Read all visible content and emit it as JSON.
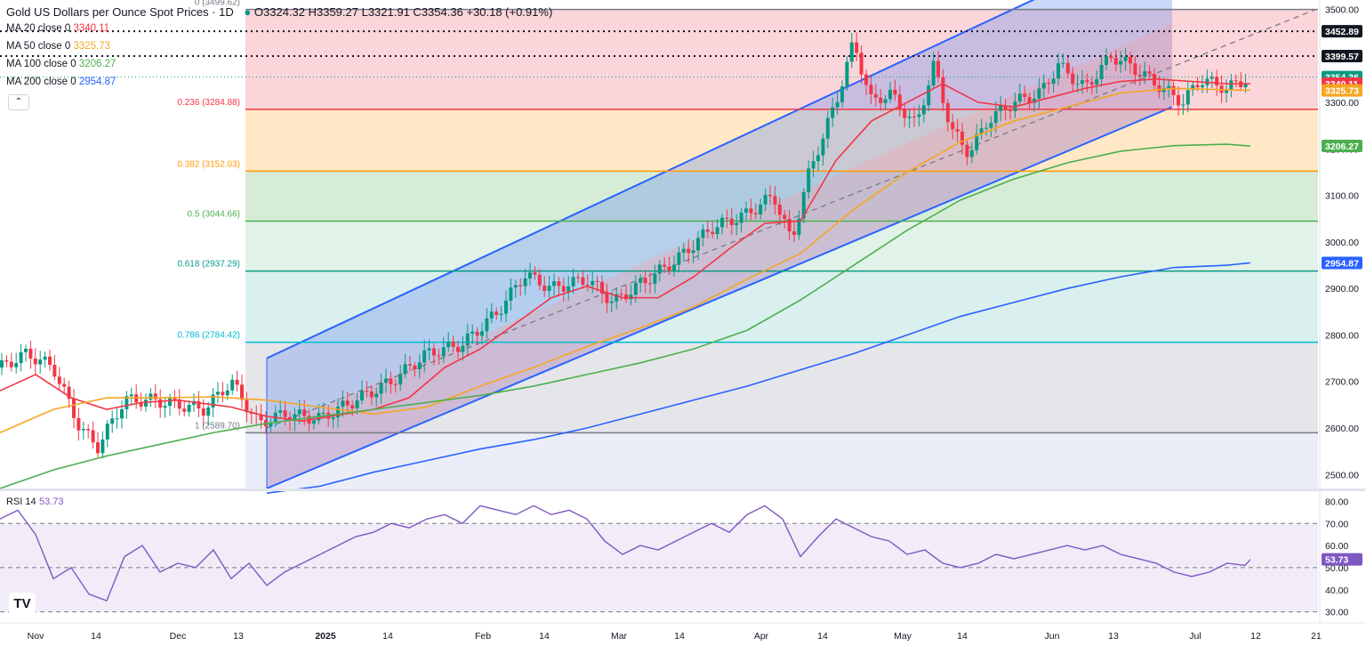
{
  "header": {
    "title": "Gold US Dollars per Ounce Spot Prices · 1D",
    "ohlc": "O3324.32 H3359.27 L3321.91 C3354.36 +30.18 (+0.91%)",
    "collapse_icon": "chevron-up-icon"
  },
  "moving_averages": [
    {
      "label": "MA 20 close 0",
      "value": "3340.11",
      "color": "#f23645",
      "current": 3340.11
    },
    {
      "label": "MA 50 close 0",
      "value": "3325.73",
      "color": "#f5a623",
      "current": 3325.73
    },
    {
      "label": "MA 100 close 0",
      "value": "3206.27",
      "color": "#4caf50",
      "current": 3206.27
    },
    {
      "label": "MA 200 close 0",
      "value": "2954.87",
      "color": "#2962ff",
      "current": 2954.87
    }
  ],
  "chart_data": [
    {
      "type": "candlestick",
      "title": "Gold US Dollars per Ounce Spot Prices · 1D",
      "ylim": [
        2470,
        3520
      ],
      "y_ticks": [
        2500,
        2600,
        2700,
        2800,
        2900,
        3000,
        3100,
        3200,
        3300,
        3400,
        3500
      ],
      "y_tick_labels": [
        "2500.00",
        "2600.00",
        "2700.00",
        "2800.00",
        "2900.00",
        "3000.00",
        "3100.00",
        "3200.00",
        "3300.00",
        "3400.00",
        "3500.00"
      ],
      "x_labels": [
        "Nov",
        "14",
        "Dec",
        "13",
        "2025",
        "14",
        "Feb",
        "14",
        "Mar",
        "14",
        "Apr",
        "14",
        "May",
        "14",
        "Jun",
        "13",
        "Jul",
        "12",
        "21"
      ],
      "last_close": 3354.36,
      "price_labels": [
        {
          "text": "3452.89",
          "value": 3452.89,
          "color": "#131722"
        },
        {
          "text": "3399.57",
          "value": 3399.57,
          "color": "#131722"
        },
        {
          "text": "3354.36",
          "value": 3354.36,
          "color": "#089981"
        },
        {
          "text": "3340.11",
          "value": 3340.11,
          "color": "#f23645"
        },
        {
          "text": "3325.73",
          "value": 3325.73,
          "color": "#f5a623"
        },
        {
          "text": "3206.27",
          "value": 3206.27,
          "color": "#4caf50"
        },
        {
          "text": "2954.87",
          "value": 2954.87,
          "color": "#2962ff"
        }
      ],
      "horizontal_lines": [
        3452.89,
        3399.57
      ],
      "fibonacci": [
        {
          "ratio": "0",
          "label": "0 (3499.62)",
          "price": 3499.62,
          "color": "#787b86"
        },
        {
          "ratio": "0.236",
          "label": "0.236 (3284.88)",
          "price": 3284.88,
          "color": "#f23645"
        },
        {
          "ratio": "0.382",
          "label": "0.382 (3152.03)",
          "price": 3152.03,
          "color": "#ff9800"
        },
        {
          "ratio": "0.5",
          "label": "0.5 (3044.66)",
          "price": 3044.66,
          "color": "#4caf50"
        },
        {
          "ratio": "0.618",
          "label": "0.618 (2937.29)",
          "price": 2937.29,
          "color": "#089981"
        },
        {
          "ratio": "0.786",
          "label": "0.786 (2784.42)",
          "price": 2784.42,
          "color": "#00bcd4"
        },
        {
          "ratio": "1",
          "label": "1 (2589.70)",
          "price": 2589.7,
          "color": "#787b86"
        }
      ],
      "series": [
        {
          "name": "MA 20 close 0",
          "color": "#f23645",
          "points": [
            [
              0,
              2680
            ],
            [
              40,
              2715
            ],
            [
              80,
              2665
            ],
            [
              120,
              2640
            ],
            [
              160,
              2655
            ],
            [
              200,
              2660
            ],
            [
              260,
              2645
            ],
            [
              300,
              2625
            ],
            [
              340,
              2615
            ],
            [
              380,
              2628
            ],
            [
              420,
              2640
            ],
            [
              460,
              2665
            ],
            [
              500,
              2730
            ],
            [
              540,
              2770
            ],
            [
              580,
              2825
            ],
            [
              620,
              2880
            ],
            [
              660,
              2905
            ],
            [
              700,
              2880
            ],
            [
              740,
              2880
            ],
            [
              780,
              2925
            ],
            [
              820,
              2985
            ],
            [
              860,
              3040
            ],
            [
              900,
              3045
            ],
            [
              940,
              3175
            ],
            [
              980,
              3260
            ],
            [
              1020,
              3300
            ],
            [
              1060,
              3340
            ],
            [
              1100,
              3300
            ],
            [
              1140,
              3290
            ],
            [
              1180,
              3310
            ],
            [
              1220,
              3330
            ],
            [
              1260,
              3345
            ],
            [
              1300,
              3350
            ],
            [
              1340,
              3345
            ],
            [
              1380,
              3340
            ],
            [
              1406,
              3340
            ]
          ]
        },
        {
          "name": "MA 50 close 0",
          "color": "#f5a623",
          "points": [
            [
              0,
              2590
            ],
            [
              60,
              2640
            ],
            [
              120,
              2665
            ],
            [
              180,
              2665
            ],
            [
              240,
              2667
            ],
            [
              300,
              2660
            ],
            [
              360,
              2645
            ],
            [
              420,
              2630
            ],
            [
              480,
              2645
            ],
            [
              540,
              2690
            ],
            [
              600,
              2730
            ],
            [
              660,
              2775
            ],
            [
              720,
              2815
            ],
            [
              780,
              2860
            ],
            [
              840,
              2920
            ],
            [
              900,
              2975
            ],
            [
              960,
              3070
            ],
            [
              1020,
              3150
            ],
            [
              1080,
              3215
            ],
            [
              1140,
              3260
            ],
            [
              1200,
              3290
            ],
            [
              1260,
              3320
            ],
            [
              1320,
              3330
            ],
            [
              1380,
              3327
            ],
            [
              1406,
              3326
            ]
          ]
        },
        {
          "name": "MA 100 close 0",
          "color": "#4caf50",
          "points": [
            [
              0,
              2470
            ],
            [
              60,
              2510
            ],
            [
              120,
              2540
            ],
            [
              180,
              2565
            ],
            [
              240,
              2590
            ],
            [
              300,
              2610
            ],
            [
              360,
              2625
            ],
            [
              420,
              2640
            ],
            [
              480,
              2655
            ],
            [
              540,
              2670
            ],
            [
              600,
              2690
            ],
            [
              660,
              2715
            ],
            [
              720,
              2740
            ],
            [
              780,
              2770
            ],
            [
              840,
              2810
            ],
            [
              900,
              2875
            ],
            [
              960,
              2950
            ],
            [
              1020,
              3025
            ],
            [
              1080,
              3090
            ],
            [
              1140,
              3135
            ],
            [
              1200,
              3170
            ],
            [
              1260,
              3195
            ],
            [
              1320,
              3207
            ],
            [
              1380,
              3210
            ],
            [
              1406,
              3206
            ]
          ]
        },
        {
          "name": "MA 200 close 0",
          "color": "#2962ff",
          "points": [
            [
              300,
              2460
            ],
            [
              360,
              2475
            ],
            [
              420,
              2505
            ],
            [
              480,
              2530
            ],
            [
              540,
              2555
            ],
            [
              600,
              2575
            ],
            [
              660,
              2600
            ],
            [
              720,
              2630
            ],
            [
              780,
              2660
            ],
            [
              840,
              2690
            ],
            [
              900,
              2725
            ],
            [
              960,
              2760
            ],
            [
              1020,
              2800
            ],
            [
              1080,
              2840
            ],
            [
              1140,
              2870
            ],
            [
              1200,
              2900
            ],
            [
              1260,
              2925
            ],
            [
              1320,
              2945
            ],
            [
              1380,
              2950
            ],
            [
              1406,
              2955
            ]
          ]
        }
      ]
    },
    {
      "type": "line",
      "title": "RSI 14",
      "value": 53.73,
      "value_label": "53.73",
      "ylim": [
        25,
        85
      ],
      "y_ticks": [
        30,
        40,
        50,
        60,
        70,
        80
      ],
      "y_tick_labels": [
        "30.00",
        "40.00",
        "50.00",
        "60.00",
        "70.00",
        "80.00"
      ],
      "bands": [
        30,
        50,
        70
      ],
      "series": [
        {
          "name": "RSI 14",
          "color": "#7e57c2",
          "points": [
            [
              0,
              72
            ],
            [
              20,
              76
            ],
            [
              40,
              65
            ],
            [
              60,
              45
            ],
            [
              80,
              50
            ],
            [
              100,
              38
            ],
            [
              120,
              35
            ],
            [
              140,
              55
            ],
            [
              160,
              60
            ],
            [
              180,
              48
            ],
            [
              200,
              52
            ],
            [
              220,
              50
            ],
            [
              240,
              58
            ],
            [
              260,
              45
            ],
            [
              280,
              52
            ],
            [
              300,
              42
            ],
            [
              320,
              48
            ],
            [
              340,
              52
            ],
            [
              360,
              56
            ],
            [
              380,
              60
            ],
            [
              400,
              64
            ],
            [
              420,
              66
            ],
            [
              440,
              70
            ],
            [
              460,
              68
            ],
            [
              480,
              72
            ],
            [
              500,
              74
            ],
            [
              520,
              70
            ],
            [
              540,
              78
            ],
            [
              560,
              76
            ],
            [
              580,
              74
            ],
            [
              600,
              78
            ],
            [
              620,
              74
            ],
            [
              640,
              76
            ],
            [
              660,
              72
            ],
            [
              680,
              62
            ],
            [
              700,
              56
            ],
            [
              720,
              60
            ],
            [
              740,
              58
            ],
            [
              760,
              62
            ],
            [
              780,
              66
            ],
            [
              800,
              70
            ],
            [
              820,
              66
            ],
            [
              840,
              74
            ],
            [
              860,
              78
            ],
            [
              880,
              72
            ],
            [
              900,
              55
            ],
            [
              920,
              64
            ],
            [
              940,
              72
            ],
            [
              960,
              68
            ],
            [
              980,
              64
            ],
            [
              1000,
              62
            ],
            [
              1020,
              56
            ],
            [
              1040,
              58
            ],
            [
              1060,
              52
            ],
            [
              1080,
              50
            ],
            [
              1100,
              52
            ],
            [
              1120,
              56
            ],
            [
              1140,
              54
            ],
            [
              1160,
              56
            ],
            [
              1180,
              58
            ],
            [
              1200,
              60
            ],
            [
              1220,
              58
            ],
            [
              1240,
              60
            ],
            [
              1260,
              56
            ],
            [
              1280,
              54
            ],
            [
              1300,
              52
            ],
            [
              1320,
              48
            ],
            [
              1340,
              46
            ],
            [
              1360,
              48
            ],
            [
              1380,
              52
            ],
            [
              1400,
              51
            ],
            [
              1406,
              53.73
            ]
          ]
        }
      ]
    }
  ]
}
